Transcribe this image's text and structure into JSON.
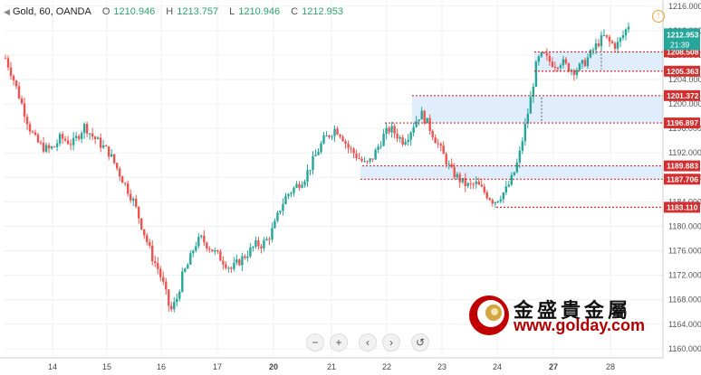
{
  "header": {
    "symbol": "Gold, 60, OANDA",
    "open_label": "O",
    "open": "1210.946",
    "high_label": "H",
    "high": "1213.757",
    "low_label": "L",
    "low": "1210.946",
    "close_label": "C",
    "close": "1212.953"
  },
  "navigation": {
    "zoom_out": "−",
    "zoom_in": "+",
    "scroll_left": "‹",
    "scroll_right": "›",
    "reset": "↺"
  },
  "logo": {
    "chinese": "金盛貴金屬",
    "url": "www.golday.com"
  },
  "colors": {
    "up": "#26a69a",
    "down": "#ef5350",
    "level_line": "#d32f2f",
    "zone_fill": "#dbeafb",
    "last_price_bg": "#26a69a",
    "level_label_bg": "#d32f2f"
  },
  "chart_data": {
    "type": "candlestick",
    "symbol": "Gold",
    "timeframe": "60",
    "source": "OANDA",
    "y_axis": {
      "min": 1158.5,
      "max": 1217,
      "ticks": [
        1160,
        1164,
        1168,
        1172,
        1176,
        1180,
        1184,
        1188,
        1192,
        1196,
        1200,
        1204,
        1208,
        1212,
        1216
      ],
      "tick_labels": [
        "1160.000",
        "1164.000",
        "1168.000",
        "1172.000",
        "1176.000",
        "1180.000",
        "1184.000",
        "1188.000",
        "1192.000",
        "1196.000",
        "1200.000",
        "1204.000",
        "1208.000",
        "1212.000",
        "1216.000"
      ]
    },
    "x_axis": {
      "labels": [
        "14",
        "15",
        "16",
        "17",
        "20",
        "21",
        "22",
        "23",
        "24",
        "27",
        "28"
      ]
    },
    "last_price": {
      "value": "1212.953",
      "countdown": "21:39"
    },
    "levels": [
      {
        "value": 1208.508,
        "label": "1208.508"
      },
      {
        "value": 1205.363,
        "label": "1205.363"
      },
      {
        "value": 1201.372,
        "label": "1201.372"
      },
      {
        "value": 1196.897,
        "label": "1196.897"
      },
      {
        "value": 1189.883,
        "label": "1189.883"
      },
      {
        "value": 1187.706,
        "label": "1187.706"
      },
      {
        "value": 1183.11,
        "label": "1183.110"
      }
    ],
    "zones": [
      {
        "from": 1205.363,
        "to": 1208.508
      },
      {
        "from": 1196.897,
        "to": 1201.372
      },
      {
        "from": 1187.706,
        "to": 1189.883
      }
    ],
    "path": [
      1207.5,
      1205,
      1202,
      1199,
      1196,
      1194,
      1193,
      1192.5,
      1193,
      1194.5,
      1194,
      1193.5,
      1195,
      1196.5,
      1195,
      1194,
      1193,
      1192,
      1190,
      1188,
      1186,
      1184,
      1181,
      1178,
      1175,
      1173,
      1170,
      1166,
      1168,
      1172,
      1174,
      1177,
      1178,
      1177,
      1176,
      1175,
      1174,
      1173,
      1174,
      1175,
      1176,
      1177,
      1177,
      1178,
      1180,
      1183,
      1185,
      1186,
      1187,
      1188,
      1190,
      1192,
      1194,
      1195,
      1196,
      1195,
      1193,
      1192,
      1191,
      1190,
      1191,
      1193,
      1195,
      1196,
      1195,
      1194,
      1195,
      1197,
      1198.5,
      1197,
      1195,
      1193,
      1191,
      1189,
      1188,
      1187,
      1186.5,
      1187,
      1186,
      1185,
      1184,
      1185,
      1186,
      1188,
      1191,
      1196,
      1201,
      1207,
      1208,
      1207,
      1206.5,
      1207,
      1206,
      1205.5,
      1206,
      1207,
      1208.5,
      1210,
      1211,
      1210,
      1209.5,
      1211,
      1212.953
    ]
  }
}
